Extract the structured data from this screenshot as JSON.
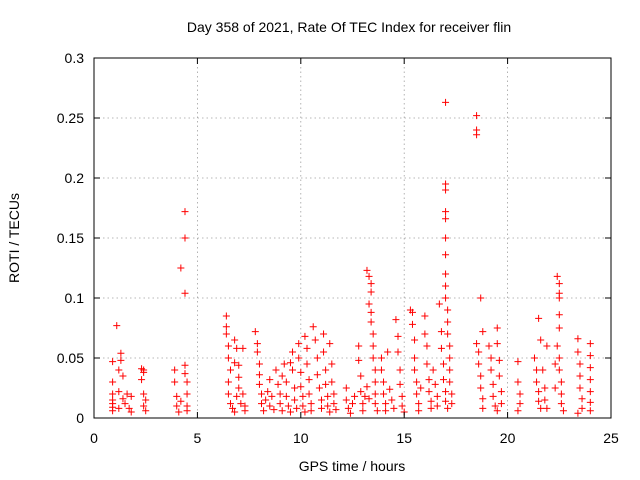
{
  "chart_data": {
    "type": "scatter",
    "title": "Day 358 of 2021, Rate Of TEC Index for receiver flin",
    "xlabel": "GPS time / hours",
    "ylabel": "ROTI / TECUs",
    "xlim": [
      0,
      25
    ],
    "ylim": [
      0,
      0.3
    ],
    "x_ticks": [
      "0",
      "5",
      "10",
      "15",
      "20",
      "25"
    ],
    "y_ticks": [
      "0",
      "0.05",
      "0.1",
      "0.15",
      "0.2",
      "0.25",
      "0.3"
    ],
    "grid": true,
    "marker": "+",
    "color": "#ff0000",
    "series": [
      {
        "points": [
          [
            0.9,
            0.047
          ],
          [
            0.9,
            0.03
          ],
          [
            0.9,
            0.02
          ],
          [
            0.9,
            0.012
          ],
          [
            0.9,
            0.006
          ],
          [
            0.9,
            0.015
          ],
          [
            0.9,
            0.009
          ],
          [
            1.1,
            0.077
          ],
          [
            1.2,
            0.04
          ],
          [
            1.2,
            0.022
          ],
          [
            1.2,
            0.008
          ],
          [
            1.3,
            0.054
          ],
          [
            1.3,
            0.048
          ],
          [
            1.4,
            0.035
          ],
          [
            1.4,
            0.016
          ],
          [
            1.5,
            0.012
          ],
          [
            1.6,
            0.02
          ],
          [
            1.7,
            0.008
          ],
          [
            1.8,
            0.018
          ],
          [
            1.8,
            0.005
          ],
          [
            2.3,
            0.041
          ],
          [
            2.3,
            0.032
          ],
          [
            2.4,
            0.038
          ],
          [
            2.4,
            0.02
          ],
          [
            2.4,
            0.01
          ],
          [
            2.5,
            0.006
          ],
          [
            2.5,
            0.015
          ],
          [
            2.4,
            0.04
          ],
          [
            3.9,
            0.04
          ],
          [
            3.9,
            0.03
          ],
          [
            4.0,
            0.018
          ],
          [
            4.0,
            0.01
          ],
          [
            4.1,
            0.005
          ],
          [
            4.2,
            0.014
          ],
          [
            4.2,
            0.125
          ],
          [
            4.4,
            0.172
          ],
          [
            4.4,
            0.15
          ],
          [
            4.4,
            0.104
          ],
          [
            4.4,
            0.044
          ],
          [
            4.4,
            0.037
          ],
          [
            4.5,
            0.03
          ],
          [
            4.5,
            0.02
          ],
          [
            4.5,
            0.01
          ],
          [
            4.5,
            0.006
          ],
          [
            6.4,
            0.085
          ],
          [
            6.4,
            0.076
          ],
          [
            6.4,
            0.07
          ],
          [
            6.5,
            0.06
          ],
          [
            6.5,
            0.05
          ],
          [
            6.6,
            0.04
          ],
          [
            6.5,
            0.03
          ],
          [
            6.5,
            0.02
          ],
          [
            6.6,
            0.012
          ],
          [
            6.7,
            0.008
          ],
          [
            6.8,
            0.005
          ],
          [
            6.9,
            0.018
          ],
          [
            7.0,
            0.034
          ],
          [
            7.0,
            0.025
          ],
          [
            7.1,
            0.012
          ],
          [
            6.8,
            0.065
          ],
          [
            6.9,
            0.058
          ],
          [
            6.8,
            0.046
          ],
          [
            7.0,
            0.044
          ],
          [
            7.2,
            0.058
          ],
          [
            7.2,
            0.02
          ],
          [
            7.3,
            0.01
          ],
          [
            7.3,
            0.006
          ],
          [
            7.8,
            0.072
          ],
          [
            7.9,
            0.062
          ],
          [
            7.9,
            0.055
          ],
          [
            8.0,
            0.045
          ],
          [
            8.0,
            0.036
          ],
          [
            8.0,
            0.028
          ],
          [
            8.1,
            0.02
          ],
          [
            8.1,
            0.012
          ],
          [
            8.2,
            0.006
          ],
          [
            8.3,
            0.015
          ],
          [
            8.4,
            0.022
          ],
          [
            8.5,
            0.01
          ],
          [
            8.5,
            0.032
          ],
          [
            8.6,
            0.018
          ],
          [
            8.7,
            0.007
          ],
          [
            8.8,
            0.04
          ],
          [
            8.9,
            0.028
          ],
          [
            9.0,
            0.02
          ],
          [
            9.0,
            0.012
          ],
          [
            9.1,
            0.006
          ],
          [
            9.1,
            0.035
          ],
          [
            9.2,
            0.045
          ],
          [
            9.3,
            0.03
          ],
          [
            9.3,
            0.018
          ],
          [
            9.4,
            0.01
          ],
          [
            9.5,
            0.005
          ],
          [
            9.5,
            0.046
          ],
          [
            9.6,
            0.055
          ],
          [
            9.6,
            0.04
          ],
          [
            9.7,
            0.025
          ],
          [
            9.7,
            0.015
          ],
          [
            9.8,
            0.008
          ],
          [
            9.9,
            0.062
          ],
          [
            9.9,
            0.05
          ],
          [
            10.0,
            0.038
          ],
          [
            10.0,
            0.026
          ],
          [
            10.1,
            0.018
          ],
          [
            10.1,
            0.01
          ],
          [
            10.2,
            0.005
          ],
          [
            10.2,
            0.068
          ],
          [
            10.3,
            0.058
          ],
          [
            10.3,
            0.045
          ],
          [
            10.4,
            0.032
          ],
          [
            10.4,
            0.02
          ],
          [
            10.5,
            0.012
          ],
          [
            10.5,
            0.006
          ],
          [
            10.6,
            0.076
          ],
          [
            10.7,
            0.065
          ],
          [
            10.8,
            0.05
          ],
          [
            10.8,
            0.036
          ],
          [
            10.9,
            0.025
          ],
          [
            11.0,
            0.015
          ],
          [
            11.0,
            0.008
          ],
          [
            11.1,
            0.07
          ],
          [
            11.1,
            0.055
          ],
          [
            11.2,
            0.04
          ],
          [
            11.2,
            0.028
          ],
          [
            11.3,
            0.018
          ],
          [
            11.3,
            0.01
          ],
          [
            11.4,
            0.005
          ],
          [
            11.4,
            0.062
          ],
          [
            11.5,
            0.045
          ],
          [
            11.5,
            0.03
          ],
          [
            11.6,
            0.02
          ],
          [
            11.6,
            0.012
          ],
          [
            11.7,
            0.007
          ],
          [
            12.2,
            0.025
          ],
          [
            12.2,
            0.015
          ],
          [
            12.3,
            0.008
          ],
          [
            12.4,
            0.004
          ],
          [
            12.5,
            0.012
          ],
          [
            12.6,
            0.018
          ],
          [
            12.8,
            0.06
          ],
          [
            12.8,
            0.048
          ],
          [
            12.9,
            0.035
          ],
          [
            12.9,
            0.022
          ],
          [
            13.0,
            0.012
          ],
          [
            13.0,
            0.006
          ],
          [
            13.1,
            0.018
          ],
          [
            13.2,
            0.123
          ],
          [
            13.3,
            0.118
          ],
          [
            13.4,
            0.112
          ],
          [
            13.4,
            0.105
          ],
          [
            13.3,
            0.095
          ],
          [
            13.4,
            0.088
          ],
          [
            13.4,
            0.08
          ],
          [
            13.5,
            0.07
          ],
          [
            13.5,
            0.06
          ],
          [
            13.5,
            0.05
          ],
          [
            13.6,
            0.04
          ],
          [
            13.6,
            0.03
          ],
          [
            13.6,
            0.02
          ],
          [
            13.6,
            0.012
          ],
          [
            13.7,
            0.006
          ],
          [
            13.3,
            0.016
          ],
          [
            13.2,
            0.026
          ],
          [
            13.9,
            0.05
          ],
          [
            13.9,
            0.04
          ],
          [
            14.0,
            0.03
          ],
          [
            14.0,
            0.02
          ],
          [
            14.1,
            0.012
          ],
          [
            14.1,
            0.006
          ],
          [
            14.2,
            0.055
          ],
          [
            14.3,
            0.024
          ],
          [
            14.4,
            0.015
          ],
          [
            14.5,
            0.008
          ],
          [
            14.6,
            0.082
          ],
          [
            14.7,
            0.068
          ],
          [
            14.7,
            0.055
          ],
          [
            14.8,
            0.04
          ],
          [
            14.8,
            0.028
          ],
          [
            14.9,
            0.018
          ],
          [
            14.9,
            0.01
          ],
          [
            15.0,
            0.005
          ],
          [
            15.3,
            0.09
          ],
          [
            15.4,
            0.088
          ],
          [
            15.4,
            0.078
          ],
          [
            15.5,
            0.065
          ],
          [
            15.5,
            0.05
          ],
          [
            15.5,
            0.04
          ],
          [
            15.6,
            0.03
          ],
          [
            15.6,
            0.02
          ],
          [
            15.7,
            0.012
          ],
          [
            15.7,
            0.006
          ],
          [
            15.8,
            0.025
          ],
          [
            16.0,
            0.085
          ],
          [
            16.0,
            0.07
          ],
          [
            16.1,
            0.06
          ],
          [
            16.1,
            0.045
          ],
          [
            16.2,
            0.032
          ],
          [
            16.2,
            0.022
          ],
          [
            16.3,
            0.014
          ],
          [
            16.3,
            0.008
          ],
          [
            16.4,
            0.04
          ],
          [
            16.5,
            0.028
          ],
          [
            16.6,
            0.018
          ],
          [
            16.6,
            0.01
          ],
          [
            16.7,
            0.095
          ],
          [
            16.8,
            0.072
          ],
          [
            16.8,
            0.058
          ],
          [
            16.9,
            0.045
          ],
          [
            16.9,
            0.032
          ],
          [
            17.0,
            0.022
          ],
          [
            17.0,
            0.014
          ],
          [
            17.1,
            0.008
          ],
          [
            17.0,
            0.263
          ],
          [
            17.0,
            0.195
          ],
          [
            17.0,
            0.19
          ],
          [
            17.0,
            0.172
          ],
          [
            17.0,
            0.166
          ],
          [
            17.0,
            0.15
          ],
          [
            17.0,
            0.136
          ],
          [
            17.0,
            0.12
          ],
          [
            17.0,
            0.11
          ],
          [
            17.0,
            0.1
          ],
          [
            17.1,
            0.09
          ],
          [
            17.1,
            0.08
          ],
          [
            17.1,
            0.07
          ],
          [
            17.2,
            0.06
          ],
          [
            17.2,
            0.05
          ],
          [
            17.2,
            0.04
          ],
          [
            17.2,
            0.03
          ],
          [
            17.3,
            0.02
          ],
          [
            17.3,
            0.012
          ],
          [
            18.5,
            0.252
          ],
          [
            18.5,
            0.24
          ],
          [
            18.5,
            0.236
          ],
          [
            18.5,
            0.062
          ],
          [
            18.6,
            0.055
          ],
          [
            18.6,
            0.045
          ],
          [
            18.7,
            0.035
          ],
          [
            18.7,
            0.025
          ],
          [
            18.8,
            0.016
          ],
          [
            18.8,
            0.008
          ],
          [
            18.7,
            0.1
          ],
          [
            18.8,
            0.072
          ],
          [
            19.1,
            0.06
          ],
          [
            19.2,
            0.05
          ],
          [
            19.2,
            0.04
          ],
          [
            19.3,
            0.028
          ],
          [
            19.3,
            0.018
          ],
          [
            19.4,
            0.01
          ],
          [
            19.5,
            0.075
          ],
          [
            19.5,
            0.062
          ],
          [
            19.6,
            0.048
          ],
          [
            19.6,
            0.035
          ],
          [
            19.7,
            0.022
          ],
          [
            19.7,
            0.012
          ],
          [
            19.5,
            0.006
          ],
          [
            20.5,
            0.047
          ],
          [
            20.5,
            0.03
          ],
          [
            20.6,
            0.02
          ],
          [
            20.6,
            0.012
          ],
          [
            20.5,
            0.006
          ],
          [
            21.3,
            0.05
          ],
          [
            21.4,
            0.04
          ],
          [
            21.4,
            0.03
          ],
          [
            21.5,
            0.022
          ],
          [
            21.5,
            0.014
          ],
          [
            21.6,
            0.008
          ],
          [
            21.5,
            0.083
          ],
          [
            21.6,
            0.065
          ],
          [
            21.7,
            0.04
          ],
          [
            21.8,
            0.025
          ],
          [
            21.8,
            0.015
          ],
          [
            21.9,
            0.008
          ],
          [
            21.9,
            0.06
          ],
          [
            22.4,
            0.118
          ],
          [
            22.5,
            0.112
          ],
          [
            22.5,
            0.104
          ],
          [
            22.5,
            0.1
          ],
          [
            22.5,
            0.086
          ],
          [
            22.5,
            0.075
          ],
          [
            22.4,
            0.06
          ],
          [
            22.5,
            0.05
          ],
          [
            22.5,
            0.04
          ],
          [
            22.6,
            0.03
          ],
          [
            22.6,
            0.02
          ],
          [
            22.6,
            0.012
          ],
          [
            22.7,
            0.006
          ],
          [
            22.3,
            0.045
          ],
          [
            22.3,
            0.025
          ],
          [
            23.4,
            0.066
          ],
          [
            23.4,
            0.055
          ],
          [
            23.5,
            0.045
          ],
          [
            23.5,
            0.035
          ],
          [
            23.5,
            0.025
          ],
          [
            23.6,
            0.016
          ],
          [
            23.6,
            0.008
          ],
          [
            23.4,
            0.004
          ],
          [
            24.0,
            0.062
          ],
          [
            24.0,
            0.052
          ],
          [
            24.0,
            0.042
          ],
          [
            24.0,
            0.032
          ],
          [
            24.0,
            0.022
          ],
          [
            24.0,
            0.013
          ],
          [
            24.0,
            0.006
          ]
        ]
      }
    ]
  }
}
